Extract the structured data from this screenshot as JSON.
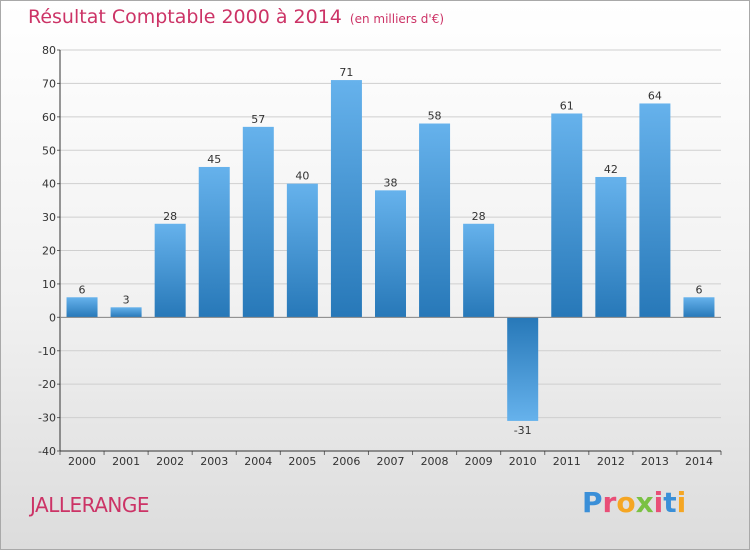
{
  "title": "Résultat Comptable 2000 à 2014",
  "unit": "(en milliers d'€)",
  "commune": "JALLERANGE",
  "logo": "Proxiti",
  "colors": {
    "title": "#cc3366",
    "bar_light": "#66b2ec",
    "bar_dark": "#2778b8",
    "grid": "#cfcfcf",
    "axis": "#333333"
  },
  "chart_data": {
    "type": "bar",
    "title": "Résultat Comptable 2000 à 2014",
    "categories": [
      "2000",
      "2001",
      "2002",
      "2003",
      "2004",
      "2005",
      "2006",
      "2007",
      "2008",
      "2009",
      "2010",
      "2011",
      "2012",
      "2013",
      "2014"
    ],
    "values": [
      6,
      3,
      28,
      45,
      57,
      40,
      71,
      38,
      58,
      28,
      -31,
      61,
      42,
      64,
      6
    ],
    "ylim": [
      -40,
      80
    ],
    "yticks": [
      -40,
      -30,
      -20,
      -10,
      0,
      10,
      20,
      30,
      40,
      50,
      60,
      70,
      80
    ],
    "grid": true,
    "xlabel": "",
    "ylabel": ""
  }
}
